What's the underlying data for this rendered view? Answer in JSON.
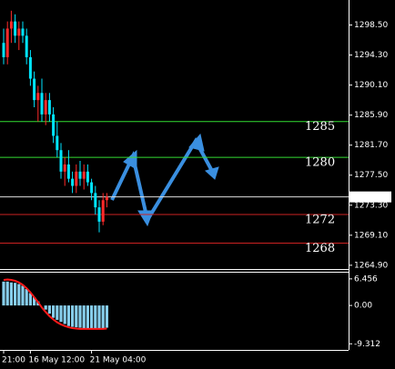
{
  "chart_data": [
    {
      "type": "candlestick",
      "categories": [
        "21:00",
        null,
        null,
        null,
        null,
        null,
        null,
        "16 May 12:00",
        null,
        null,
        null,
        null,
        null,
        null,
        null,
        null,
        null,
        null,
        null,
        null,
        null,
        null,
        null,
        "21 May 04:00",
        null,
        null,
        null,
        null
      ],
      "open": [
        1296,
        1294,
        1298,
        1299,
        1297,
        1298,
        1297,
        1294,
        1291,
        1288,
        1289,
        1286,
        1288,
        1286,
        1283,
        1281,
        1278,
        1279,
        1277,
        1276,
        1278,
        1277,
        1278,
        1276.5,
        1275,
        1273,
        1271,
        1274
      ],
      "high": [
        1298,
        1299,
        1300.5,
        1300,
        1299,
        1299,
        1298,
        1295,
        1292,
        1290,
        1291,
        1289,
        1289,
        1287,
        1285,
        1282,
        1280,
        1281,
        1278,
        1279,
        1279.5,
        1279,
        1279,
        1277,
        1276,
        1274,
        1275,
        1275
      ],
      "low": [
        1293,
        1293,
        1296,
        1296,
        1295,
        1296,
        1293,
        1290,
        1287,
        1285,
        1285,
        1284.5,
        1285,
        1282,
        1280,
        1277,
        1276,
        1276.5,
        1275,
        1275,
        1276,
        1275.5,
        1276,
        1274,
        1272,
        1269.5,
        1270.5,
        1273
      ],
      "close": [
        1294,
        1298,
        1299,
        1297,
        1298,
        1297,
        1294,
        1291,
        1288,
        1289,
        1286,
        1288,
        1286,
        1283,
        1281,
        1278,
        1279,
        1277,
        1276,
        1278,
        1277,
        1278,
        1276.5,
        1275,
        1273,
        1271,
        1274,
        1274.46
      ],
      "up_color": "#ff2a2a",
      "down_color": "#00e5ff",
      "ylim": [
        1264.5,
        1302.0
      ],
      "yticks": [
        {
          "value": 1298.5,
          "label": "1298.50"
        },
        {
          "value": 1294.3,
          "label": "1294.30"
        },
        {
          "value": 1290.1,
          "label": "1290.10"
        },
        {
          "value": 1285.9,
          "label": "1285.90"
        },
        {
          "value": 1281.7,
          "label": "1281.70"
        },
        {
          "value": 1277.5,
          "label": "1277.50"
        },
        {
          "value": 1273.3,
          "label": "1273.30"
        },
        {
          "value": 1269.1,
          "label": "1269.10"
        },
        {
          "value": 1264.9,
          "label": "1264.90"
        }
      ],
      "levels": [
        {
          "value": 1285,
          "color": "#33dd33"
        },
        {
          "value": 1280,
          "color": "#33dd33"
        },
        {
          "value": 1272,
          "color": "#cc2222"
        },
        {
          "value": 1268,
          "color": "#cc2222"
        }
      ],
      "level_label_color": "#dd33dd",
      "last_price": 1274.46
    },
    {
      "type": "oscillator",
      "values": [
        5.8,
        5.8,
        5.6,
        5.5,
        5.2,
        4.8,
        4,
        3,
        2,
        1,
        0,
        -1,
        -2,
        -3,
        -3.5,
        -4,
        -4.5,
        -5,
        -5.2,
        -5.3,
        -5.4,
        -5.5,
        -5.5,
        -5.5,
        -5.6,
        -5.6,
        -5.5,
        -5.4
      ],
      "signal": [
        6.2,
        6.3,
        6.2,
        6,
        5.6,
        5,
        4.2,
        3.2,
        2,
        0.8,
        -0.5,
        -1.6,
        -2.6,
        -3.4,
        -4.1,
        -4.6,
        -5,
        -5.3,
        -5.5,
        -5.6,
        -5.7,
        -5.7,
        -5.7,
        -5.7,
        -5.7,
        -5.7,
        -5.7,
        -5.6
      ],
      "color": "#87ceeb",
      "signal_color": "#ff1a1a",
      "ylim": [
        -10.8,
        7.97
      ],
      "yticks": [
        6.456,
        {
          "value": 0,
          "label": "0.00"
        },
        -9.312
      ]
    }
  ]
}
